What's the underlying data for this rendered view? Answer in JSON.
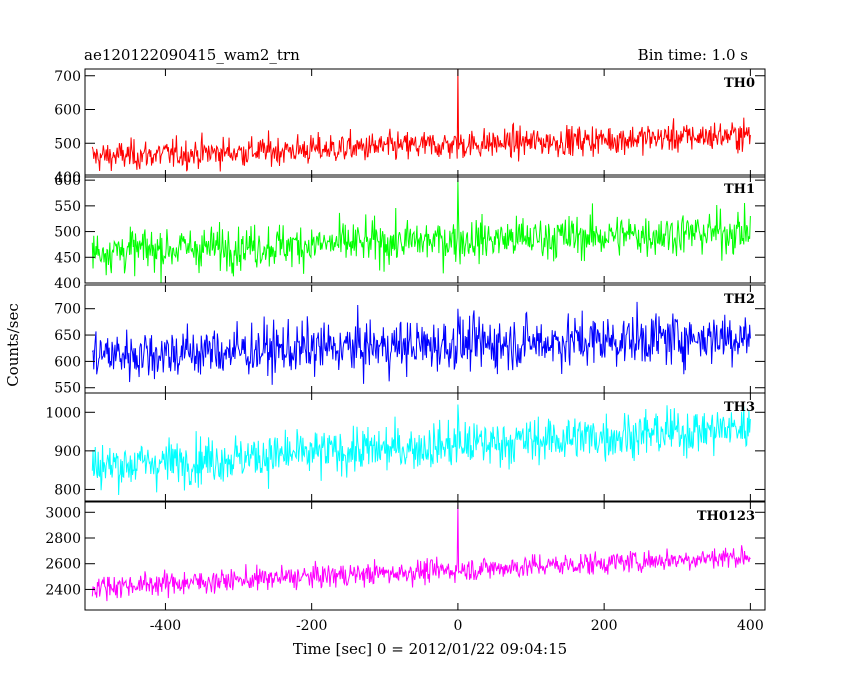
{
  "header": {
    "left_title": "ae120122090415_wam2_trn",
    "right_title": "Bin time: 1.0 s"
  },
  "chart_data": {
    "type": "line",
    "xlabel": "Time [sec] 0 = 2012/01/22 09:04:15",
    "ylabel": "Counts/sec",
    "xlim": [
      -510,
      420
    ],
    "xticks": [
      -400,
      -200,
      0,
      200,
      400
    ],
    "x_range": [
      -500,
      400
    ],
    "spike_x": 0,
    "panels": [
      {
        "name": "TH0",
        "color": "#ff0000",
        "ylim": [
          400,
          720
        ],
        "yticks": [
          400,
          500,
          600,
          700
        ],
        "trend_start": 460,
        "trend_end": 525,
        "noise": 22,
        "spike_peak": 720
      },
      {
        "name": "TH1",
        "color": "#00ff00",
        "ylim": [
          400,
          610
        ],
        "yticks": [
          400,
          450,
          500,
          550,
          600
        ],
        "trend_start": 462,
        "trend_end": 500,
        "noise": 21,
        "spike_peak": 600
      },
      {
        "name": "TH2",
        "color": "#0000ff",
        "ylim": [
          540,
          745
        ],
        "yticks": [
          550,
          600,
          650,
          700
        ],
        "trend_start": 612,
        "trend_end": 648,
        "noise": 25,
        "spike_peak": 700
      },
      {
        "name": "TH3",
        "color": "#00ffff",
        "ylim": [
          770,
          1050
        ],
        "yticks": [
          800,
          900,
          1000
        ],
        "trend_start": 860,
        "trend_end": 960,
        "noise": 30,
        "spike_peak": 1020
      },
      {
        "name": "TH0123",
        "color": "#ff00ff",
        "ylim": [
          2240,
          3080
        ],
        "yticks": [
          2400,
          2600,
          2800,
          3000
        ],
        "trend_start": 2420,
        "trend_end": 2660,
        "noise": 45,
        "spike_peak": 3060
      }
    ]
  }
}
